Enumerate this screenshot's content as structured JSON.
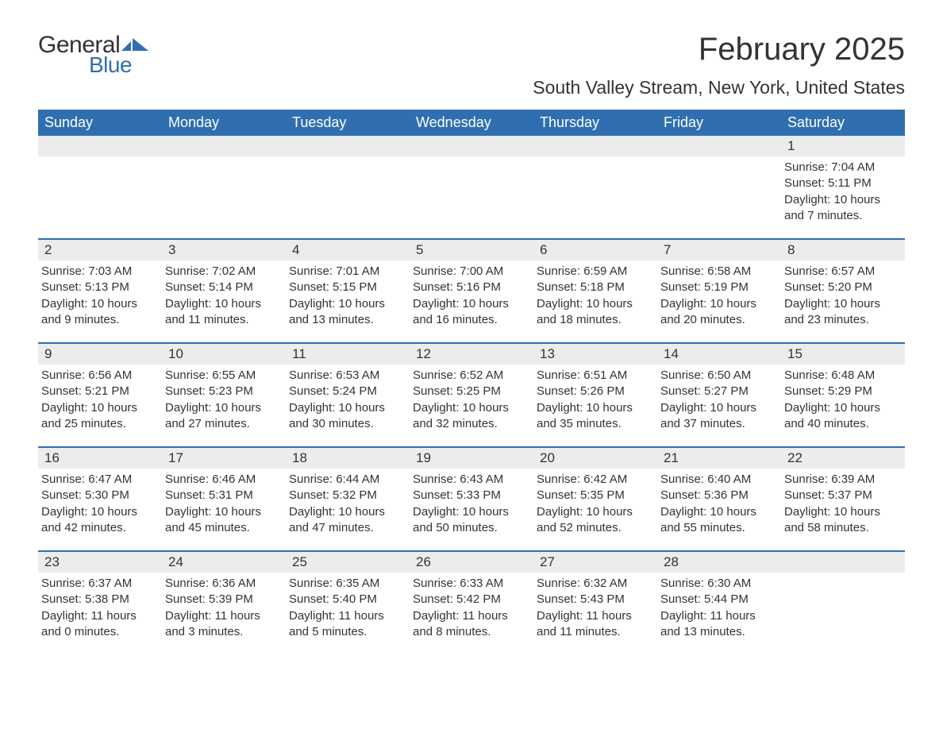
{
  "logo": {
    "general": "General",
    "blue": "Blue",
    "flag_color": "#2f6fb0"
  },
  "title": "February 2025",
  "location": "South Valley Stream, New York, United States",
  "colors": {
    "header_bg": "#2f6fb0",
    "header_text": "#ffffff",
    "daynum_bg": "#ececec",
    "border": "#2f6fb0",
    "text": "#333333",
    "background": "#ffffff"
  },
  "typography": {
    "title_fontsize": 40,
    "location_fontsize": 23,
    "weekday_fontsize": 18,
    "daynum_fontsize": 17,
    "body_fontsize": 15
  },
  "weekdays": [
    "Sunday",
    "Monday",
    "Tuesday",
    "Wednesday",
    "Thursday",
    "Friday",
    "Saturday"
  ],
  "weeks": [
    [
      null,
      null,
      null,
      null,
      null,
      null,
      {
        "day": "1",
        "sunrise": "Sunrise: 7:04 AM",
        "sunset": "Sunset: 5:11 PM",
        "daylight1": "Daylight: 10 hours",
        "daylight2": "and 7 minutes."
      }
    ],
    [
      {
        "day": "2",
        "sunrise": "Sunrise: 7:03 AM",
        "sunset": "Sunset: 5:13 PM",
        "daylight1": "Daylight: 10 hours",
        "daylight2": "and 9 minutes."
      },
      {
        "day": "3",
        "sunrise": "Sunrise: 7:02 AM",
        "sunset": "Sunset: 5:14 PM",
        "daylight1": "Daylight: 10 hours",
        "daylight2": "and 11 minutes."
      },
      {
        "day": "4",
        "sunrise": "Sunrise: 7:01 AM",
        "sunset": "Sunset: 5:15 PM",
        "daylight1": "Daylight: 10 hours",
        "daylight2": "and 13 minutes."
      },
      {
        "day": "5",
        "sunrise": "Sunrise: 7:00 AM",
        "sunset": "Sunset: 5:16 PM",
        "daylight1": "Daylight: 10 hours",
        "daylight2": "and 16 minutes."
      },
      {
        "day": "6",
        "sunrise": "Sunrise: 6:59 AM",
        "sunset": "Sunset: 5:18 PM",
        "daylight1": "Daylight: 10 hours",
        "daylight2": "and 18 minutes."
      },
      {
        "day": "7",
        "sunrise": "Sunrise: 6:58 AM",
        "sunset": "Sunset: 5:19 PM",
        "daylight1": "Daylight: 10 hours",
        "daylight2": "and 20 minutes."
      },
      {
        "day": "8",
        "sunrise": "Sunrise: 6:57 AM",
        "sunset": "Sunset: 5:20 PM",
        "daylight1": "Daylight: 10 hours",
        "daylight2": "and 23 minutes."
      }
    ],
    [
      {
        "day": "9",
        "sunrise": "Sunrise: 6:56 AM",
        "sunset": "Sunset: 5:21 PM",
        "daylight1": "Daylight: 10 hours",
        "daylight2": "and 25 minutes."
      },
      {
        "day": "10",
        "sunrise": "Sunrise: 6:55 AM",
        "sunset": "Sunset: 5:23 PM",
        "daylight1": "Daylight: 10 hours",
        "daylight2": "and 27 minutes."
      },
      {
        "day": "11",
        "sunrise": "Sunrise: 6:53 AM",
        "sunset": "Sunset: 5:24 PM",
        "daylight1": "Daylight: 10 hours",
        "daylight2": "and 30 minutes."
      },
      {
        "day": "12",
        "sunrise": "Sunrise: 6:52 AM",
        "sunset": "Sunset: 5:25 PM",
        "daylight1": "Daylight: 10 hours",
        "daylight2": "and 32 minutes."
      },
      {
        "day": "13",
        "sunrise": "Sunrise: 6:51 AM",
        "sunset": "Sunset: 5:26 PM",
        "daylight1": "Daylight: 10 hours",
        "daylight2": "and 35 minutes."
      },
      {
        "day": "14",
        "sunrise": "Sunrise: 6:50 AM",
        "sunset": "Sunset: 5:27 PM",
        "daylight1": "Daylight: 10 hours",
        "daylight2": "and 37 minutes."
      },
      {
        "day": "15",
        "sunrise": "Sunrise: 6:48 AM",
        "sunset": "Sunset: 5:29 PM",
        "daylight1": "Daylight: 10 hours",
        "daylight2": "and 40 minutes."
      }
    ],
    [
      {
        "day": "16",
        "sunrise": "Sunrise: 6:47 AM",
        "sunset": "Sunset: 5:30 PM",
        "daylight1": "Daylight: 10 hours",
        "daylight2": "and 42 minutes."
      },
      {
        "day": "17",
        "sunrise": "Sunrise: 6:46 AM",
        "sunset": "Sunset: 5:31 PM",
        "daylight1": "Daylight: 10 hours",
        "daylight2": "and 45 minutes."
      },
      {
        "day": "18",
        "sunrise": "Sunrise: 6:44 AM",
        "sunset": "Sunset: 5:32 PM",
        "daylight1": "Daylight: 10 hours",
        "daylight2": "and 47 minutes."
      },
      {
        "day": "19",
        "sunrise": "Sunrise: 6:43 AM",
        "sunset": "Sunset: 5:33 PM",
        "daylight1": "Daylight: 10 hours",
        "daylight2": "and 50 minutes."
      },
      {
        "day": "20",
        "sunrise": "Sunrise: 6:42 AM",
        "sunset": "Sunset: 5:35 PM",
        "daylight1": "Daylight: 10 hours",
        "daylight2": "and 52 minutes."
      },
      {
        "day": "21",
        "sunrise": "Sunrise: 6:40 AM",
        "sunset": "Sunset: 5:36 PM",
        "daylight1": "Daylight: 10 hours",
        "daylight2": "and 55 minutes."
      },
      {
        "day": "22",
        "sunrise": "Sunrise: 6:39 AM",
        "sunset": "Sunset: 5:37 PM",
        "daylight1": "Daylight: 10 hours",
        "daylight2": "and 58 minutes."
      }
    ],
    [
      {
        "day": "23",
        "sunrise": "Sunrise: 6:37 AM",
        "sunset": "Sunset: 5:38 PM",
        "daylight1": "Daylight: 11 hours",
        "daylight2": "and 0 minutes."
      },
      {
        "day": "24",
        "sunrise": "Sunrise: 6:36 AM",
        "sunset": "Sunset: 5:39 PM",
        "daylight1": "Daylight: 11 hours",
        "daylight2": "and 3 minutes."
      },
      {
        "day": "25",
        "sunrise": "Sunrise: 6:35 AM",
        "sunset": "Sunset: 5:40 PM",
        "daylight1": "Daylight: 11 hours",
        "daylight2": "and 5 minutes."
      },
      {
        "day": "26",
        "sunrise": "Sunrise: 6:33 AM",
        "sunset": "Sunset: 5:42 PM",
        "daylight1": "Daylight: 11 hours",
        "daylight2": "and 8 minutes."
      },
      {
        "day": "27",
        "sunrise": "Sunrise: 6:32 AM",
        "sunset": "Sunset: 5:43 PM",
        "daylight1": "Daylight: 11 hours",
        "daylight2": "and 11 minutes."
      },
      {
        "day": "28",
        "sunrise": "Sunrise: 6:30 AM",
        "sunset": "Sunset: 5:44 PM",
        "daylight1": "Daylight: 11 hours",
        "daylight2": "and 13 minutes."
      },
      null
    ]
  ]
}
